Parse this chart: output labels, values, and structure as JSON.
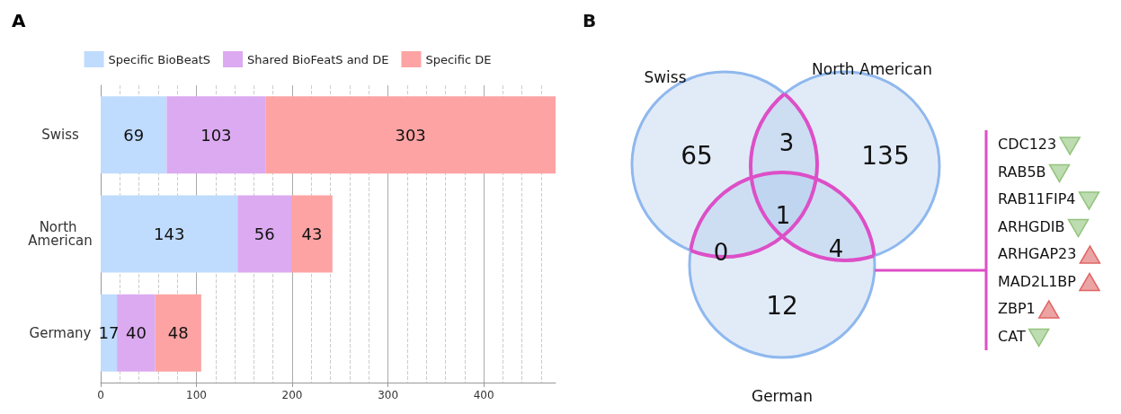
{
  "chart_data": [
    {
      "type": "bar",
      "title": "A",
      "orientation": "horizontal",
      "stacked": true,
      "categories": [
        "Swiss",
        "North American",
        "Germany"
      ],
      "series": [
        {
          "name": "Specific BioBeatS",
          "color": "#bfdbfd",
          "values": [
            69,
            143,
            17
          ]
        },
        {
          "name": "Shared BioFeatS and DE",
          "color": "#dcaaf0",
          "values": [
            103,
            56,
            40
          ]
        },
        {
          "name": "Specific DE",
          "color": "#fda3a3",
          "values": [
            303,
            43,
            48
          ]
        }
      ],
      "xlim": [
        0,
        475
      ],
      "xticks": [
        0,
        100,
        200,
        300,
        400
      ],
      "grid": "x",
      "legend": "top",
      "data_labels": true
    },
    {
      "type": "other",
      "title": "B",
      "annotations": [
        "Swiss",
        "North American",
        "German",
        "65",
        "135",
        "12",
        "3",
        "0",
        "4",
        "1"
      ],
      "categories": [
        "CDC123",
        "RAB5B",
        "RAB11FIP4",
        "ARHGDIB",
        "ARHGAP23",
        "MAD2L1BP",
        "ZBP1",
        "CAT"
      ],
      "colors": [
        "#93c47d",
        "#93c47d",
        "#93c47d",
        "#93c47d",
        "#e06666",
        "#e06666",
        "#e06666",
        "#93c47d"
      ]
    }
  ]
}
